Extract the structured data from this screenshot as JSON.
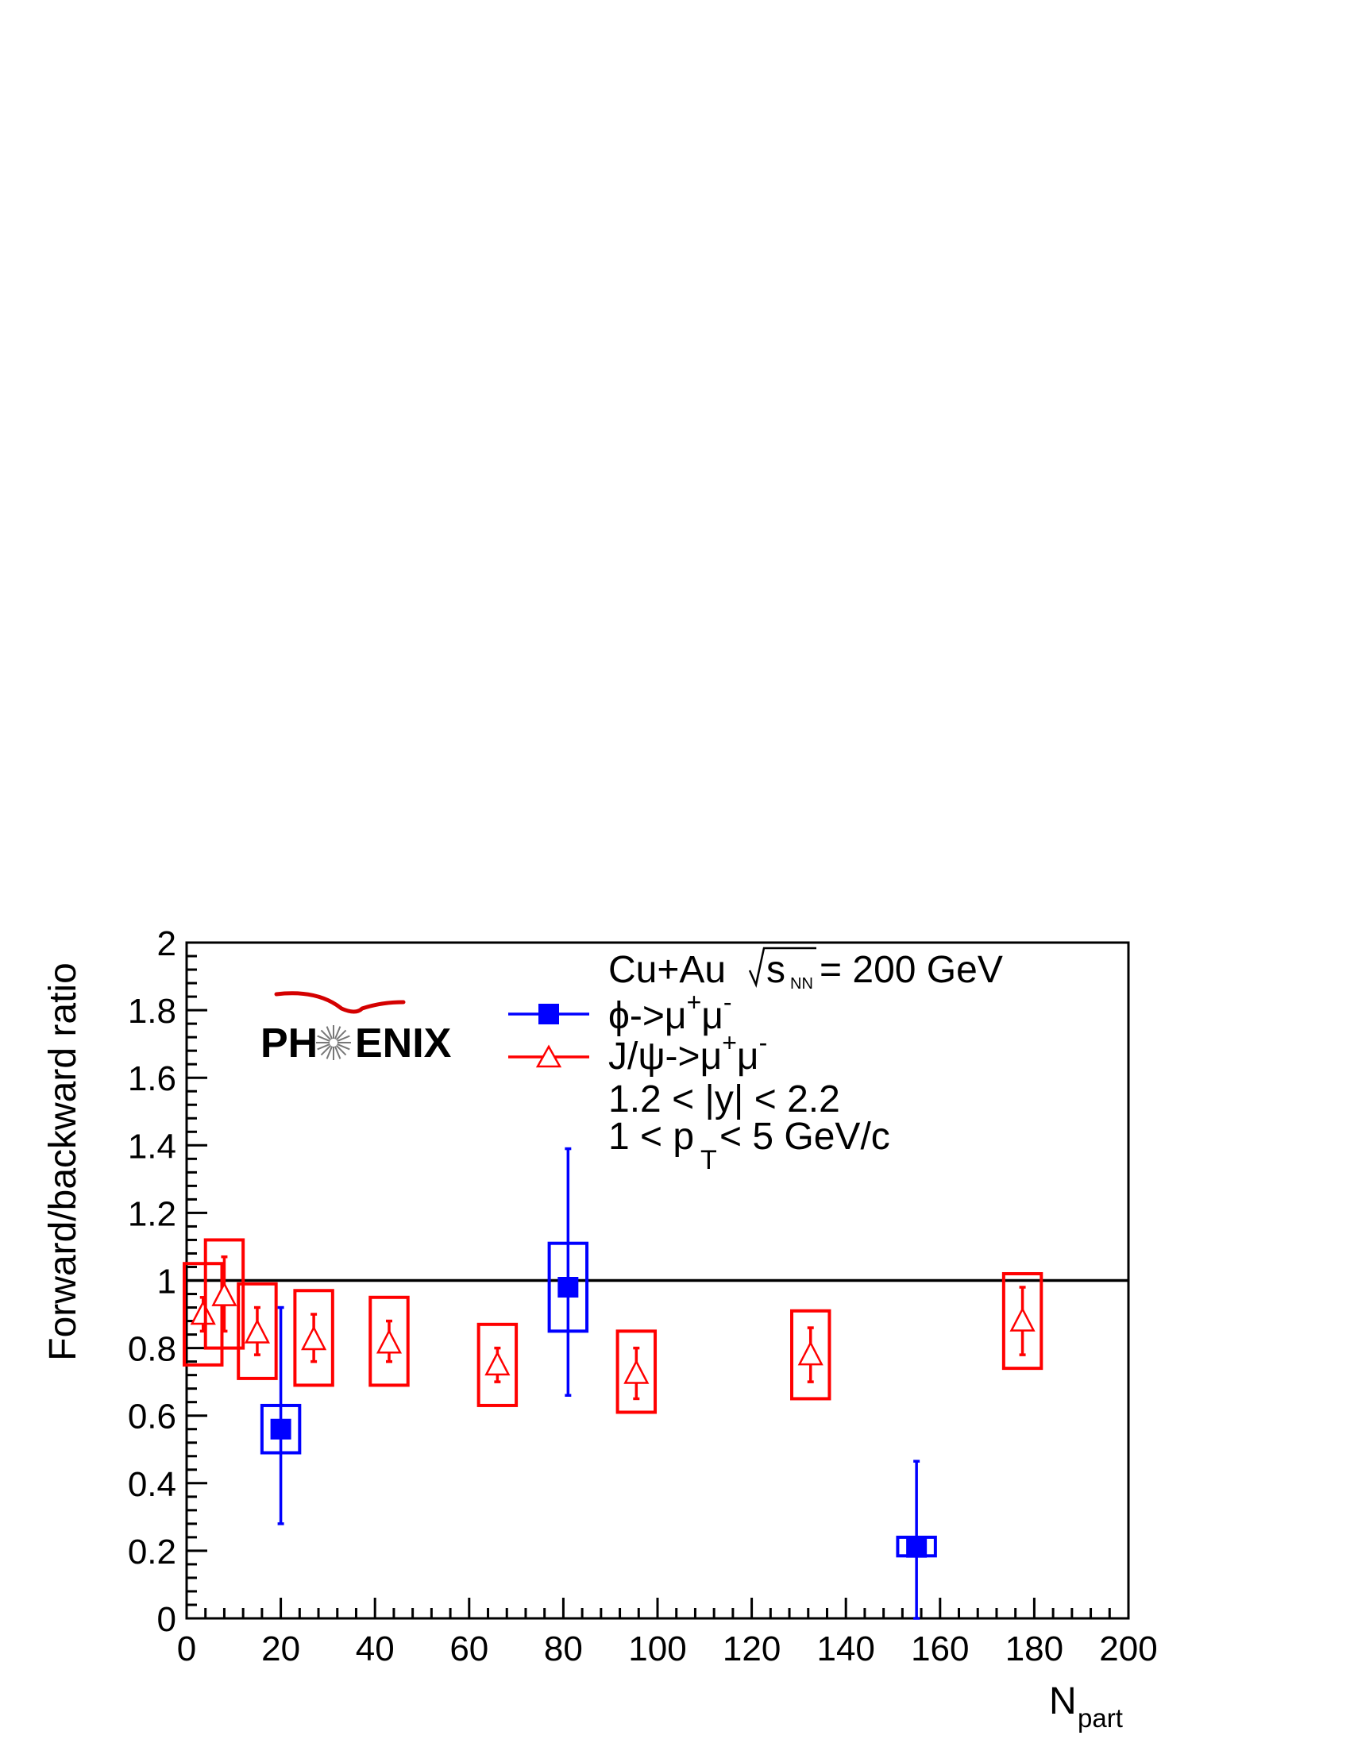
{
  "logo": {
    "text_left": "PH",
    "text_right": "ENIX",
    "color": "#222222",
    "swoosh_color": "#d40000"
  },
  "chart_data": {
    "type": "scatter",
    "xlabel": "N",
    "xlabel_sub": "part",
    "ylabel": "Forward/backward ratio",
    "xlim": [
      0,
      200
    ],
    "ylim": [
      0,
      2
    ],
    "x_ticks": [
      0,
      20,
      40,
      60,
      80,
      100,
      120,
      140,
      160,
      180,
      200
    ],
    "x_tick_labels": [
      "0",
      "20",
      "40",
      "60",
      "80",
      "100",
      "120",
      "140",
      "160",
      "180",
      "200"
    ],
    "y_ticks": [
      0,
      0.2,
      0.4,
      0.6,
      0.8,
      1,
      1.2,
      1.4,
      1.6,
      1.8,
      2
    ],
    "y_tick_labels": [
      "0",
      "0.2",
      "0.4",
      "0.6",
      "0.8",
      "1",
      "1.2",
      "1.4",
      "1.6",
      "1.8",
      "2"
    ],
    "reference_line": 1,
    "grid": false,
    "legend_position": "top-right",
    "annotations": {
      "system_prefix": "Cu+Au ",
      "sqrt_s": "s",
      "sqrt_s_sub": "NN",
      "system_suffix": " = 200 GeV",
      "rapidity": "1.2 < |y| < 2.2",
      "pt_prefix": "1 < p",
      "pt_sub": "T",
      "pt_suffix": " < 5 GeV/c"
    },
    "series": [
      {
        "name": "ϕ->μ⁺μ⁻",
        "legend_base": "ϕ->μ",
        "legend_sup1": "+",
        "legend_mid": "μ",
        "legend_sup2": "-",
        "marker": "filled-square",
        "color": "#0000ff",
        "points": [
          {
            "x": 20,
            "y": 0.56,
            "stat_low": 0.28,
            "stat_high": 0.92,
            "sys_low": 0.49,
            "sys_high": 0.63,
            "sys_half_width": 4
          },
          {
            "x": 81,
            "y": 0.98,
            "stat_low": 0.66,
            "stat_high": 1.39,
            "sys_low": 0.85,
            "sys_high": 1.11,
            "sys_half_width": 4
          },
          {
            "x": 155,
            "y": 0.21,
            "stat_low": 0.0,
            "stat_high": 0.465,
            "sys_low": 0.185,
            "sys_high": 0.24,
            "sys_half_width": 4
          }
        ]
      },
      {
        "name": "J/ψ->μ⁺μ⁻",
        "legend_base": "J/ψ->μ",
        "legend_sup1": "+",
        "legend_mid": "μ",
        "legend_sup2": "-",
        "marker": "open-triangle",
        "color": "#ff0000",
        "points": [
          {
            "x": 3.5,
            "y": 0.9,
            "stat_low": 0.85,
            "stat_high": 0.95,
            "sys_low": 0.75,
            "sys_high": 1.05,
            "sys_half_width": 4
          },
          {
            "x": 8,
            "y": 0.955,
            "stat_low": 0.85,
            "stat_high": 1.07,
            "sys_low": 0.8,
            "sys_high": 1.12,
            "sys_half_width": 4
          },
          {
            "x": 15,
            "y": 0.845,
            "stat_low": 0.78,
            "stat_high": 0.92,
            "sys_low": 0.71,
            "sys_high": 0.99,
            "sys_half_width": 4
          },
          {
            "x": 27,
            "y": 0.825,
            "stat_low": 0.76,
            "stat_high": 0.9,
            "sys_low": 0.69,
            "sys_high": 0.97,
            "sys_half_width": 4
          },
          {
            "x": 43,
            "y": 0.815,
            "stat_low": 0.76,
            "stat_high": 0.88,
            "sys_low": 0.69,
            "sys_high": 0.95,
            "sys_half_width": 4
          },
          {
            "x": 66,
            "y": 0.75,
            "stat_low": 0.7,
            "stat_high": 0.8,
            "sys_low": 0.63,
            "sys_high": 0.87,
            "sys_half_width": 4
          },
          {
            "x": 95.5,
            "y": 0.725,
            "stat_low": 0.65,
            "stat_high": 0.8,
            "sys_low": 0.61,
            "sys_high": 0.85,
            "sys_half_width": 4
          },
          {
            "x": 132.5,
            "y": 0.78,
            "stat_low": 0.7,
            "stat_high": 0.86,
            "sys_low": 0.65,
            "sys_high": 0.91,
            "sys_half_width": 4
          },
          {
            "x": 177.5,
            "y": 0.88,
            "stat_low": 0.78,
            "stat_high": 0.98,
            "sys_low": 0.74,
            "sys_high": 1.02,
            "sys_half_width": 4
          }
        ]
      }
    ]
  }
}
